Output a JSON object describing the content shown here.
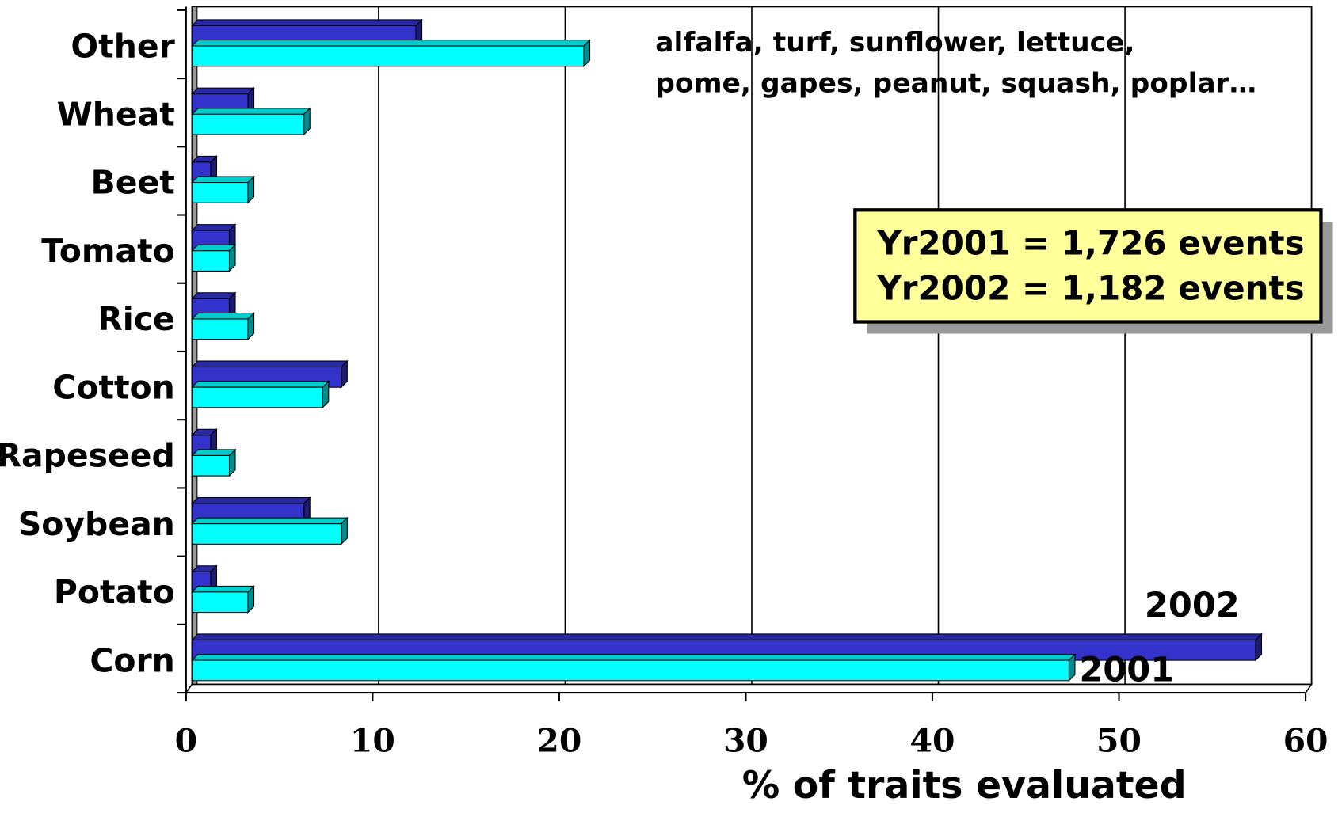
{
  "chart_data": {
    "type": "bar3d_horizontal",
    "categories": [
      "Other",
      "Wheat",
      "Beet",
      "Tomato",
      "Rice",
      "Cotton",
      "Rapeseed",
      "Soybean",
      "Potato",
      "Corn"
    ],
    "series": [
      {
        "name": "2002",
        "color": "#3333cc",
        "label_color": "#3333cc",
        "values": [
          12,
          3,
          1,
          2,
          2,
          8,
          1,
          6,
          1,
          57
        ]
      },
      {
        "name": "2001",
        "color": "#00ffff",
        "label_color": "#1a6fd0",
        "values": [
          21,
          6,
          3,
          2,
          3,
          7,
          2,
          8,
          3,
          47
        ]
      }
    ],
    "xlabel": "% of traits evaluated",
    "xlim": [
      0,
      60
    ],
    "xticks": [
      0,
      10,
      20,
      30,
      40,
      50,
      60
    ],
    "grid": true,
    "annotations": [
      "alfalfa, turf, sunflower, lettuce,",
      "pome, gapes, peanut, squash, poplar…"
    ],
    "box_lines": [
      "Yr2001 = 1,726 events",
      "Yr2002 = 1,182 events"
    ]
  }
}
